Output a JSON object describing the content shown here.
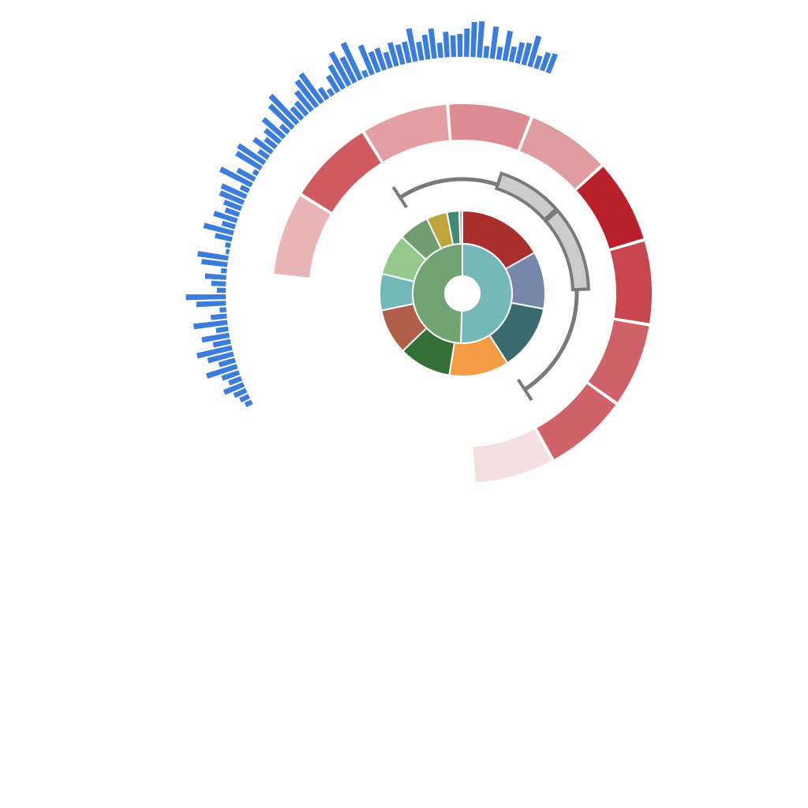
{
  "chart_data": {
    "type": "sunburst",
    "colors": {
      "background": "#ffffff",
      "radial_bars": "#3a7ddc",
      "bracket_stroke": "#7a7a7a",
      "bracket_fill": "#cccccc",
      "segment_stroke": "#ffffff"
    },
    "inner_ring": [
      {
        "value": 50.5,
        "color": "#75b8b9"
      },
      {
        "value": 49.5,
        "color": "#72a373"
      }
    ],
    "middle_ring": [
      {
        "value": 16.2,
        "color": "#a92e2c"
      },
      {
        "value": 10.8,
        "color": "#7688ab"
      },
      {
        "value": 12.4,
        "color": "#396b6f"
      },
      {
        "value": 11.3,
        "color": "#f39c43"
      },
      {
        "value": 9.9,
        "color": "#346f37"
      },
      {
        "value": 8.6,
        "color": "#b06048"
      },
      {
        "value": 6.9,
        "color": "#72b8b9"
      },
      {
        "value": 7.8,
        "color": "#95c98c"
      },
      {
        "value": 5.8,
        "color": "#709e70"
      },
      {
        "value": 3.9,
        "color": "#bfa63c"
      },
      {
        "value": 2.3,
        "color": "#3e8b75"
      },
      {
        "value": 0.6,
        "color": "#aaaaaa"
      }
    ],
    "outer_ring": [
      {
        "start_deg": 276,
        "end_deg": 301,
        "color": "#e8b4b5"
      },
      {
        "start_deg": 302,
        "end_deg": 328,
        "color": "#cf5a60"
      },
      {
        "start_deg": 329,
        "end_deg": 355,
        "color": "#e2a0a4"
      },
      {
        "start_deg": 356,
        "end_deg": 381,
        "color": "#dc8c92"
      },
      {
        "start_deg": 382,
        "end_deg": 407,
        "color": "#e09da1"
      },
      {
        "start_deg": 408,
        "end_deg": 433,
        "color": "#b9202a"
      },
      {
        "start_deg": 434,
        "end_deg": 459,
        "color": "#c8464d"
      },
      {
        "start_deg": 460,
        "end_deg": 485,
        "color": "#d0636a"
      },
      {
        "start_deg": 486,
        "end_deg": 511,
        "color": "#d0636a"
      },
      {
        "start_deg": 512,
        "end_deg": 536,
        "color": "#f5e0e1"
      }
    ],
    "bracket": {
      "start_deg": 327,
      "end_deg": 507,
      "highlight_segments": [
        {
          "start_deg": 378,
          "end_deg": 408
        },
        {
          "start_deg": 409,
          "end_deg": 448
        }
      ]
    },
    "radial_bars": {
      "start_deg": 242,
      "end_deg": 382,
      "values": [
        0.16,
        0.22,
        0.3,
        0.48,
        0.3,
        0.41,
        0.72,
        0.38,
        0.6,
        0.81,
        0.4,
        0.63,
        0.28,
        0.77,
        0.36,
        0.15,
        0.67,
        0.9,
        0.2,
        0.33,
        0.48,
        0.13,
        0.59,
        0.7,
        0.08,
        0.12,
        0.39,
        0.69,
        0.31,
        0.55,
        0.33,
        0.42,
        0.58,
        0.61,
        0.21,
        0.8,
        0.45,
        0.12,
        0.66,
        0.72,
        0.27,
        0.51,
        0.31,
        0.44,
        0.63,
        0.24,
        0.73,
        0.88,
        0.35,
        0.38,
        0.56,
        0.74,
        0.81,
        0.3,
        0.17,
        0.43,
        0.61,
        0.85,
        0.64,
        0.92,
        0.16,
        0.71,
        0.49,
        0.52,
        0.37,
        0.55,
        0.46,
        0.49,
        0.76,
        0.42,
        0.56,
        0.68,
        0.34,
        0.58,
        0.49,
        0.52,
        0.64,
        0.79,
        0.82,
        0.27,
        0.73,
        0.29,
        0.68,
        0.35,
        0.48,
        0.51,
        0.72,
        0.3,
        0.43,
        0.46
      ]
    }
  }
}
